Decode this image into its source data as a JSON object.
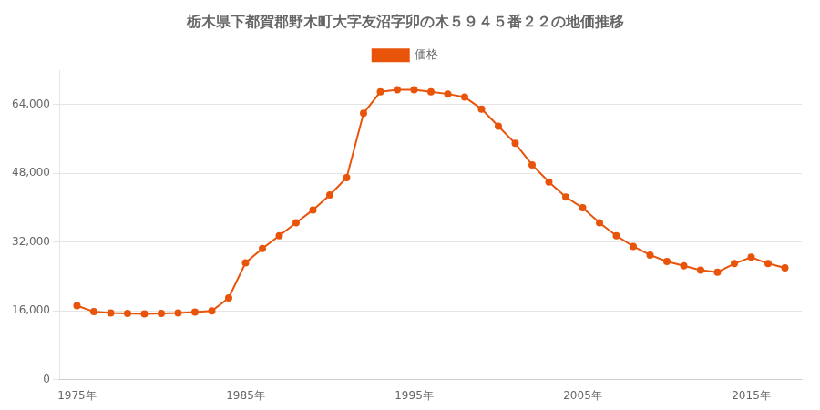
{
  "chart_data": {
    "type": "line",
    "title": "栃木県下都賀郡野木町大字友沼字卯の木５９４５番２２の地価推移",
    "x": [
      1975,
      1976,
      1977,
      1978,
      1979,
      1980,
      1981,
      1982,
      1983,
      1984,
      1985,
      1986,
      1987,
      1988,
      1989,
      1990,
      1991,
      1992,
      1993,
      1994,
      1995,
      1996,
      1997,
      1998,
      1999,
      2000,
      2001,
      2002,
      2003,
      2004,
      2005,
      2006,
      2007,
      2008,
      2009,
      2010,
      2011,
      2012,
      2013,
      2014,
      2015,
      2016,
      2017
    ],
    "series": [
      {
        "name": "価格",
        "color": "#E8540A",
        "marker": "circle",
        "line_style": "solid",
        "values": [
          17200,
          15800,
          15500,
          15400,
          15300,
          15400,
          15500,
          15700,
          16000,
          19000,
          27200,
          30500,
          33500,
          36500,
          39500,
          43000,
          47000,
          62000,
          67000,
          67500,
          67500,
          67000,
          66500,
          65800,
          63000,
          59000,
          55000,
          50000,
          46000,
          42500,
          40000,
          36500,
          33500,
          31000,
          29000,
          27500,
          26500,
          25500,
          25000,
          27000,
          28500,
          27000,
          26000
        ]
      }
    ],
    "xlim": [
      1974,
      2018
    ],
    "xticks": [
      {
        "value": 1975,
        "label": "1975年"
      },
      {
        "value": 1985,
        "label": "1985年"
      },
      {
        "value": 1995,
        "label": "1995年"
      },
      {
        "value": 2005,
        "label": "2005年"
      },
      {
        "value": 2015,
        "label": "2015年"
      }
    ],
    "ylim": [
      0,
      72000
    ],
    "yticks": [
      0,
      {
        "value": 16000,
        "label": "16,000"
      },
      {
        "value": 32000,
        "label": "32,000"
      },
      {
        "value": 48000,
        "label": "48,000"
      },
      {
        "value": 64000,
        "label": "64,000"
      }
    ],
    "grid": "y",
    "legend": "top"
  }
}
